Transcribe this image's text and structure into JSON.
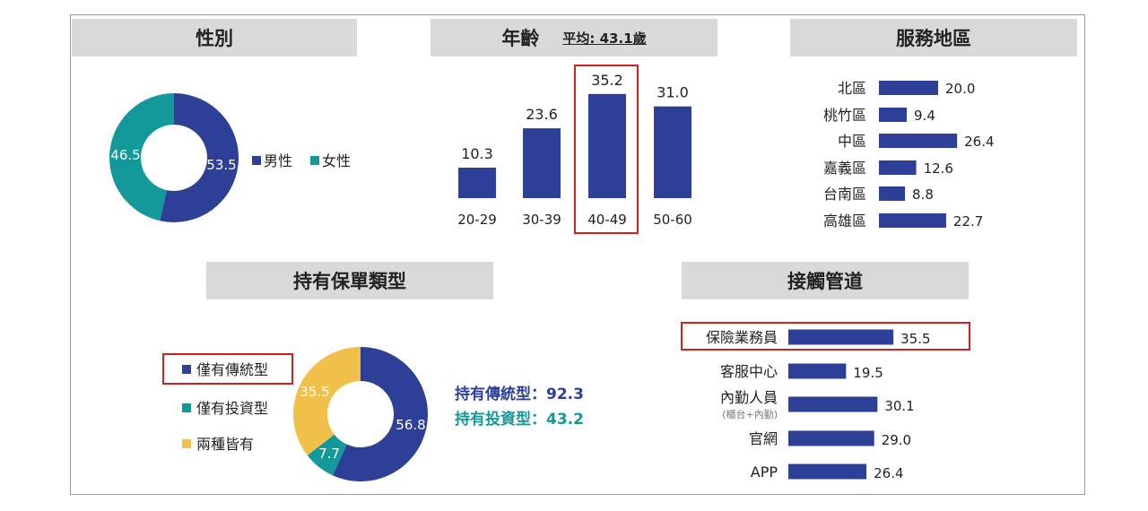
{
  "sections": {
    "gender": {
      "title": "性別"
    },
    "age": {
      "title": "年齡",
      "subtitle": "平均: 43.1歲"
    },
    "region": {
      "title": "服務地區"
    },
    "policy": {
      "title": "持有保單類型"
    },
    "channel": {
      "title": "接觸管道"
    }
  },
  "colors": {
    "navy": "#2e3f97",
    "teal": "#13999a",
    "gold": "#f1c04b",
    "highlight": "#d32020"
  },
  "chart_data": [
    {
      "id": "gender",
      "type": "pie",
      "donut": true,
      "slices": [
        {
          "label": "男性",
          "value": 53.5,
          "color": "#2e3f97"
        },
        {
          "label": "女性",
          "value": 46.5,
          "color": "#13999a"
        }
      ],
      "legend_position": "right"
    },
    {
      "id": "age",
      "type": "bar",
      "categories": [
        "20-29",
        "30-39",
        "40-49",
        "50-60"
      ],
      "values": [
        10.3,
        23.6,
        35.2,
        31.0
      ],
      "value_labels": [
        "10.3",
        "23.6",
        "35.2",
        "31.0"
      ],
      "highlight_category": "40-49",
      "color": "#2e3f97"
    },
    {
      "id": "region",
      "type": "bar",
      "orientation": "horizontal",
      "categories": [
        "北區",
        "桃竹區",
        "中區",
        "嘉義區",
        "台南區",
        "高雄區"
      ],
      "values": [
        20.0,
        9.4,
        26.4,
        12.6,
        8.8,
        22.7
      ],
      "value_labels": [
        "20.0",
        "9.4",
        "26.4",
        "12.6",
        "8.8",
        "22.7"
      ],
      "color": "#2e3f97"
    },
    {
      "id": "policy",
      "type": "pie",
      "donut": true,
      "slices": [
        {
          "label": "僅有傳統型",
          "value": 56.8,
          "color": "#2e3f97"
        },
        {
          "label": "僅有投資型",
          "value": 7.7,
          "color": "#13999a"
        },
        {
          "label": "兩種皆有",
          "value": 35.5,
          "color": "#f1c04b"
        }
      ],
      "highlight_legend": "僅有傳統型",
      "legend_position": "left",
      "annotations": [
        {
          "text": "持有傳統型：92.3",
          "color": "#2e3f97"
        },
        {
          "text": "持有投資型：43.2",
          "color": "#13999a"
        }
      ]
    },
    {
      "id": "channel",
      "type": "bar",
      "orientation": "horizontal",
      "categories": [
        "保險業務員",
        "客服中心",
        "內勤人員",
        "官網",
        "APP"
      ],
      "category_notes": [
        "",
        "",
        "(櫃台+內勤)",
        "",
        ""
      ],
      "values": [
        35.5,
        19.5,
        30.1,
        29.0,
        26.4
      ],
      "value_labels": [
        "35.5",
        "19.5",
        "30.1",
        "29.0",
        "26.4"
      ],
      "highlight_category": "保險業務員",
      "color": "#2e3f97"
    }
  ]
}
